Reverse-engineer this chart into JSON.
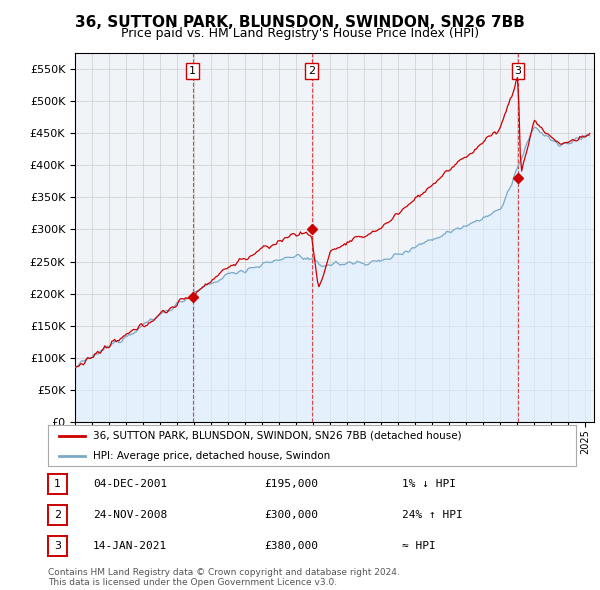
{
  "title": "36, SUTTON PARK, BLUNSDON, SWINDON, SN26 7BB",
  "subtitle": "Price paid vs. HM Land Registry's House Price Index (HPI)",
  "ylim": [
    0,
    575000
  ],
  "yticks": [
    0,
    50000,
    100000,
    150000,
    200000,
    250000,
    300000,
    350000,
    400000,
    450000,
    500000,
    550000
  ],
  "xlim_start": 1995.0,
  "xlim_end": 2025.5,
  "sale_color": "#cc0000",
  "hpi_color": "#7aaac8",
  "hpi_fill_color": "#ddeeff",
  "grid_color": "#cccccc",
  "background_color": "#ffffff",
  "plot_bg_color": "#f0f4f8",
  "vline_color": "#cc0000",
  "transactions": [
    {
      "num": 1,
      "date_label": "04-DEC-2001",
      "year": 2001.92,
      "price": 195000,
      "change": "1% ↓ HPI"
    },
    {
      "num": 2,
      "date_label": "24-NOV-2008",
      "year": 2008.9,
      "price": 300000,
      "change": "24% ↑ HPI"
    },
    {
      "num": 3,
      "date_label": "14-JAN-2021",
      "year": 2021.04,
      "price": 380000,
      "change": "≈ HPI"
    }
  ],
  "legend_entries": [
    "36, SUTTON PARK, BLUNSDON, SWINDON, SN26 7BB (detached house)",
    "HPI: Average price, detached house, Swindon"
  ],
  "footer_text": "Contains HM Land Registry data © Crown copyright and database right 2024.\nThis data is licensed under the Open Government Licence v3.0.",
  "title_fontsize": 11,
  "subtitle_fontsize": 9,
  "tick_fontsize": 7,
  "legend_fontsize": 7.5
}
